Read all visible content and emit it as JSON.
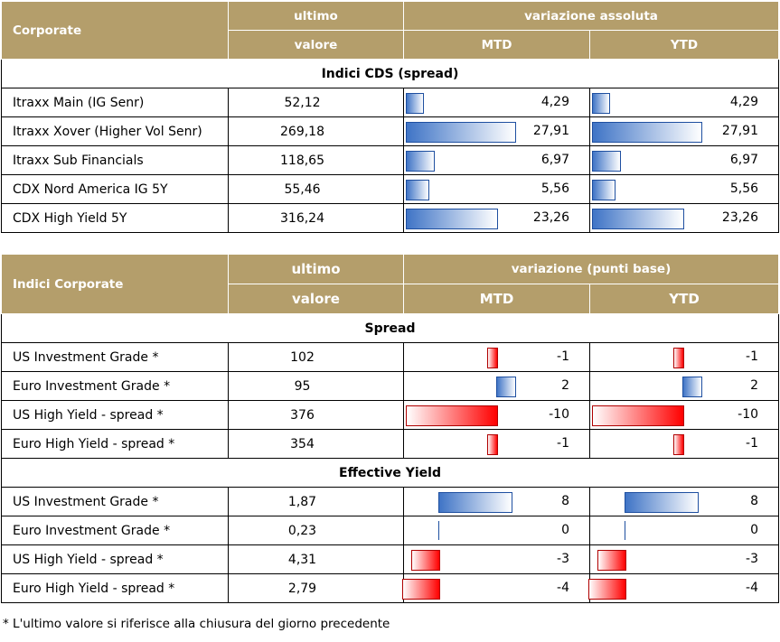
{
  "table1": {
    "header": {
      "col1": "Corporate",
      "col2_top": "ultimo",
      "col2_bottom": "valore",
      "group": "variazione assoluta",
      "mtd": "MTD",
      "ytd": "YTD"
    },
    "section": "Indici CDS (spread)",
    "rows": [
      {
        "name": "Itraxx Main (IG Senr)",
        "value": "52,12",
        "mtd": "4,29",
        "ytd": "4,29",
        "mtd_num": 4.29,
        "ytd_num": 4.29
      },
      {
        "name": "Itraxx Xover (Higher Vol Senr)",
        "value": "269,18",
        "mtd": "27,91",
        "ytd": "27,91",
        "mtd_num": 27.91,
        "ytd_num": 27.91
      },
      {
        "name": "Itraxx Sub Financials",
        "value": "118,65",
        "mtd": "6,97",
        "ytd": "6,97",
        "mtd_num": 6.97,
        "ytd_num": 6.97
      },
      {
        "name": "CDX Nord America IG 5Y",
        "value": "55,46",
        "mtd": "5,56",
        "ytd": "5,56",
        "mtd_num": 5.56,
        "ytd_num": 5.56
      },
      {
        "name": "CDX High Yield 5Y",
        "value": "316,24",
        "mtd": "23,26",
        "ytd": "23,26",
        "mtd_num": 23.26,
        "ytd_num": 23.26
      }
    ]
  },
  "table2": {
    "header": {
      "col1": "Indici Corporate",
      "col2_top": "ultimo",
      "col2_bottom": "valore",
      "group": "variazione (punti base)",
      "mtd": "MTD",
      "ytd": "YTD"
    },
    "section_spread": "Spread",
    "spread_rows": [
      {
        "name": "US Investment Grade *",
        "value": "102",
        "mtd": "-1",
        "ytd": "-1",
        "mtd_num": -1,
        "ytd_num": -1
      },
      {
        "name": "Euro Investment Grade *",
        "value": "95",
        "mtd": "2",
        "ytd": "2",
        "mtd_num": 2,
        "ytd_num": 2
      },
      {
        "name": "US High Yield  - spread *",
        "value": "376",
        "mtd": "-10",
        "ytd": "-10",
        "mtd_num": -10,
        "ytd_num": -10
      },
      {
        "name": "Euro High Yield  - spread *",
        "value": "354",
        "mtd": "-1",
        "ytd": "-1",
        "mtd_num": -1,
        "ytd_num": -1
      }
    ],
    "section_yield": "Effective Yield",
    "yield_rows": [
      {
        "name": "US Investment Grade *",
        "value": "1,87",
        "mtd": "8",
        "ytd": "8",
        "mtd_num": 8,
        "ytd_num": 8
      },
      {
        "name": "Euro Investment Grade *",
        "value": "0,23",
        "mtd": "0",
        "ytd": "0",
        "mtd_num": 0,
        "ytd_num": 0
      },
      {
        "name": "US High Yield  - spread *",
        "value": "4,31",
        "mtd": "-3",
        "ytd": "-3",
        "mtd_num": -3,
        "ytd_num": -3
      },
      {
        "name": "Euro High Yield  - spread *",
        "value": "2,79",
        "mtd": "-4",
        "ytd": "-4",
        "mtd_num": -4,
        "ytd_num": -4
      }
    ]
  },
  "footnote": "* L'ultimo valore si riferisce alla chiusura del giorno precedente",
  "colors": {
    "header_bg": "#b49e6b",
    "positive_bar": "#3f74c6",
    "negative_bar": "#ff0000"
  }
}
